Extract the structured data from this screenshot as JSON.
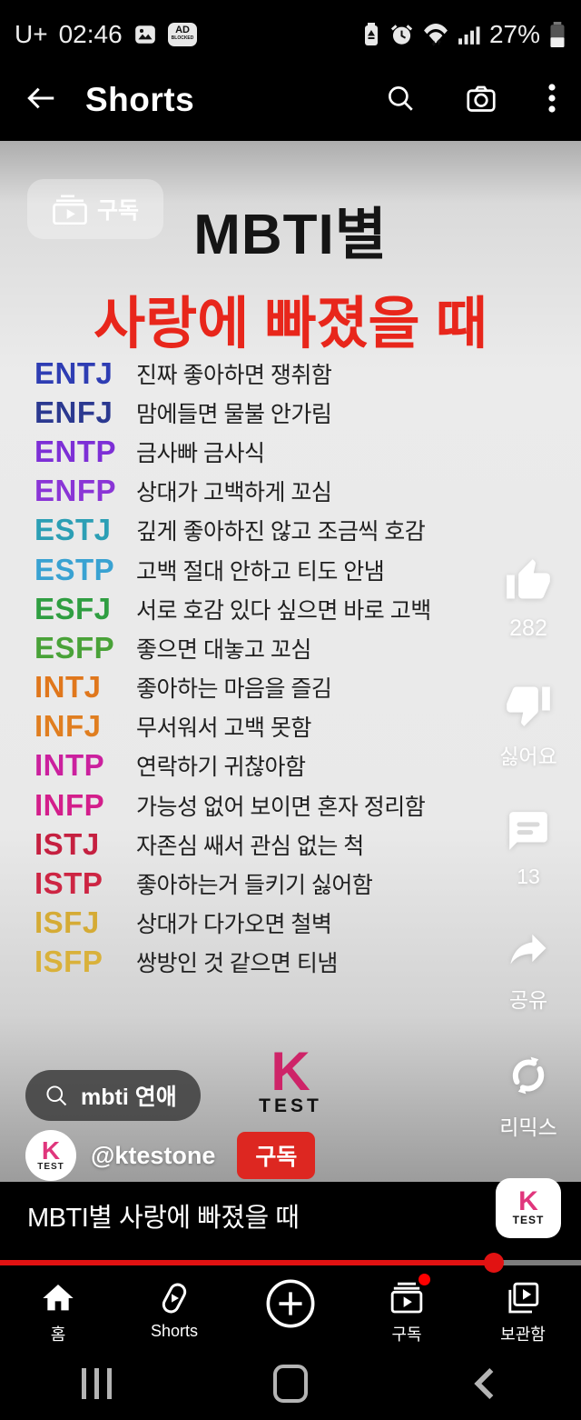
{
  "status_bar": {
    "carrier": "U+",
    "time": "02:46",
    "ad_badge": "AD",
    "battery_percent": "27%"
  },
  "header": {
    "title": "Shorts"
  },
  "video": {
    "watermark_subscribe_label": "구독",
    "title_black": "MBTI별",
    "title_red": "사랑에 빠졌을 때",
    "items": [
      {
        "type": "ENTJ",
        "color": "#2e3db3",
        "desc": "진짜 좋아하면 쟁취함"
      },
      {
        "type": "ENFJ",
        "color": "#2b3990",
        "desc": "맘에들면 물불 안가림"
      },
      {
        "type": "ENTP",
        "color": "#7d2fd6",
        "desc": "금사빠 금사식"
      },
      {
        "type": "ENFP",
        "color": "#8a35d6",
        "desc": "상대가 고백하게 꼬심"
      },
      {
        "type": "ESTJ",
        "color": "#2c9fb5",
        "desc": "깊게 좋아하진 않고 조금씩 호감"
      },
      {
        "type": "ESTP",
        "color": "#39a2d2",
        "desc": "고백 절대 안하고 티도 안냄"
      },
      {
        "type": "ESFJ",
        "color": "#2f9e41",
        "desc": "서로 호감 있다 싶으면 바로 고백"
      },
      {
        "type": "ESFP",
        "color": "#49a238",
        "desc": "좋으면 대놓고 꼬심"
      },
      {
        "type": "INTJ",
        "color": "#e0771c",
        "desc": "좋아하는 마음을 즐김"
      },
      {
        "type": "INFJ",
        "color": "#e07e20",
        "desc": "무서워서 고백 못함"
      },
      {
        "type": "INTP",
        "color": "#cb209e",
        "desc": "연락하기 귀찮아함"
      },
      {
        "type": "INFP",
        "color": "#d31e8b",
        "desc": "가능성 없어 보이면 혼자 정리함"
      },
      {
        "type": "ISTJ",
        "color": "#c52040",
        "desc": "자존심 쌔서 관심 없는 척"
      },
      {
        "type": "ISTP",
        "color": "#cd2543",
        "desc": "좋아하는거 들키기 싫어함"
      },
      {
        "type": "ISFJ",
        "color": "#d5ab35",
        "desc": "상대가 다가오면 철벽"
      },
      {
        "type": "ISFP",
        "color": "#d9b13a",
        "desc": "쌍방인 것 같으면 티냄"
      }
    ],
    "search_chip": "mbti 연애",
    "logo_k": "K",
    "logo_test": "TEST"
  },
  "actions": {
    "like_count": "282",
    "dislike_label": "싫어요",
    "comment_count": "13",
    "share_label": "공유",
    "remix_label": "리믹스"
  },
  "channel": {
    "avatar_k": "K",
    "avatar_test": "TEST",
    "handle": "@ktestone",
    "subscribe_label": "구독"
  },
  "bottom": {
    "caption": "MBTI별 사랑에 빠졌을 때",
    "badge_k": "K",
    "badge_test": "TEST"
  },
  "progress": {
    "percent": 85
  },
  "bottom_nav": {
    "home": "홈",
    "shorts": "Shorts",
    "subscriptions": "구독",
    "library": "보관함"
  }
}
